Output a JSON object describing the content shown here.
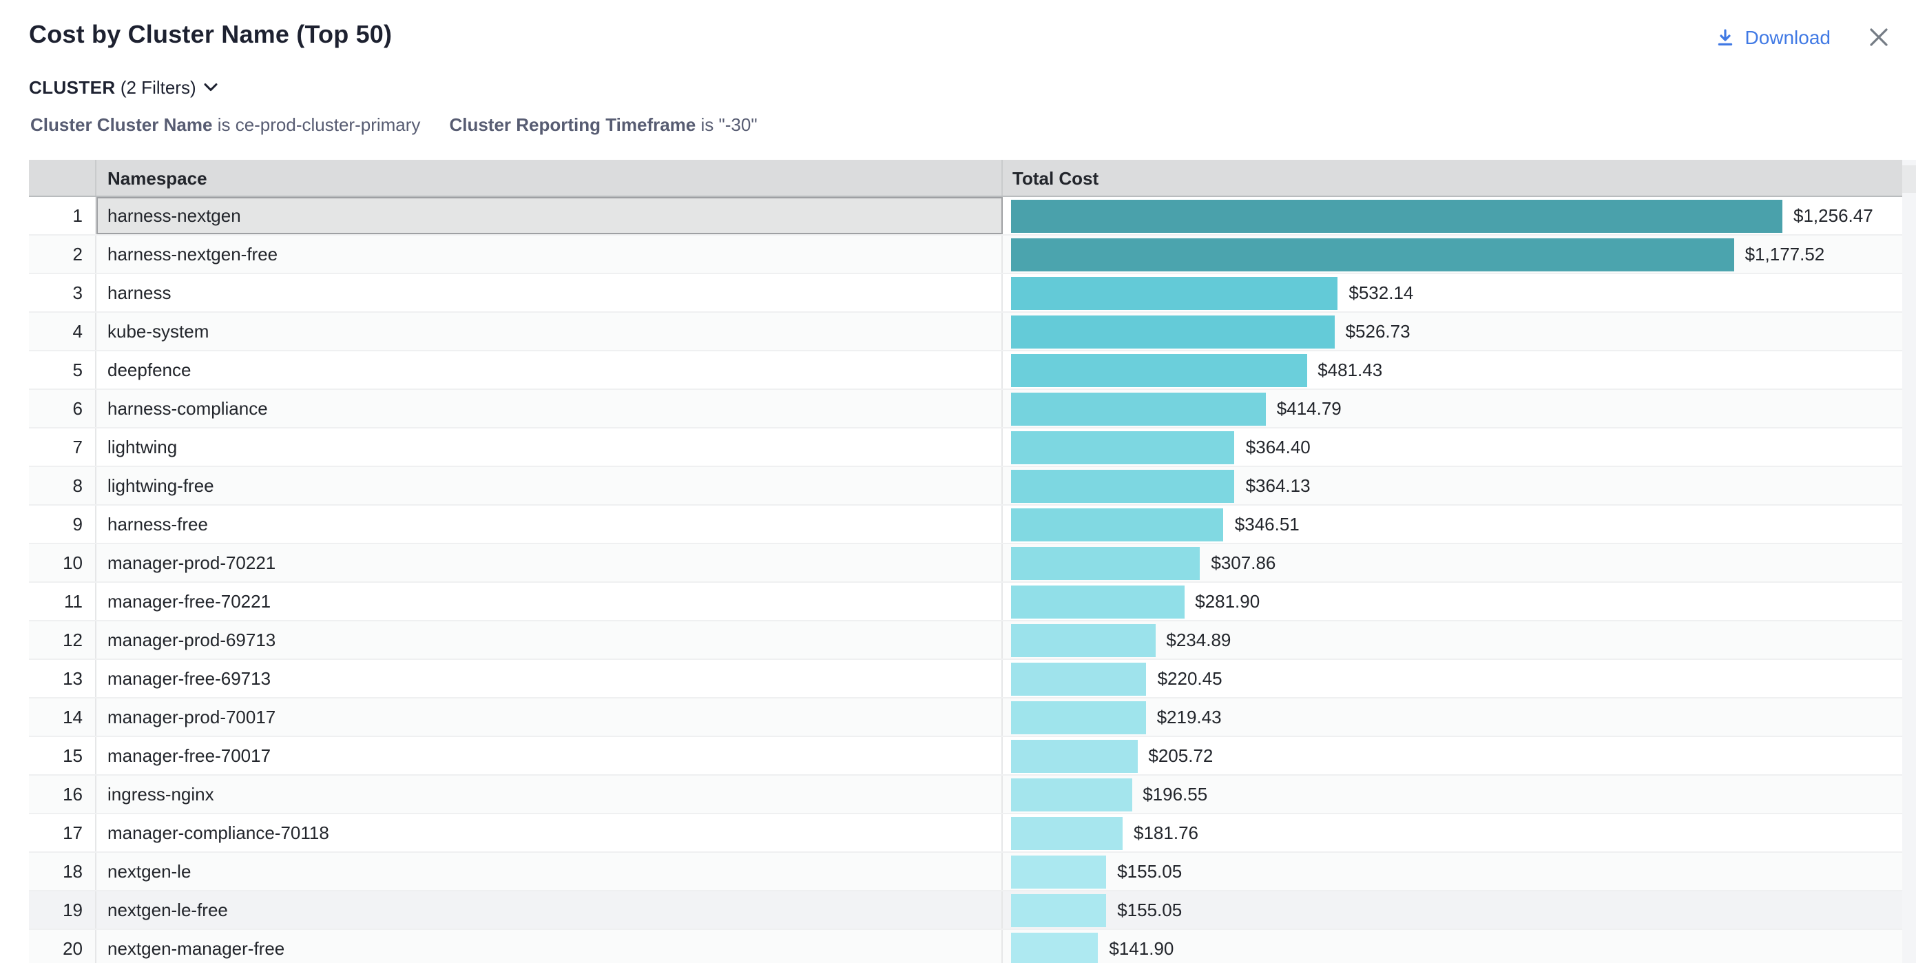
{
  "header": {
    "title": "Cost by Cluster Name (Top 50)",
    "download_label": "Download"
  },
  "filters": {
    "group_label": "CLUSTER",
    "count_label": "(2 Filters)",
    "chips": [
      {
        "field": "Cluster Cluster Name",
        "condition": "is ce-prod-cluster-primary"
      },
      {
        "field": "Cluster Reporting Timeframe",
        "condition": "is \"-30\""
      }
    ]
  },
  "table": {
    "columns": [
      "",
      "Namespace",
      "Total Cost"
    ],
    "max_cost": 1256.47,
    "rows": [
      {
        "rank": 1,
        "namespace": "harness-nextgen",
        "cost": 1256.47,
        "cost_label": "$1,256.47",
        "bar_color": "#4AA1AB",
        "selected": true,
        "hovered": false
      },
      {
        "rank": 2,
        "namespace": "harness-nextgen-free",
        "cost": 1177.52,
        "cost_label": "$1,177.52",
        "bar_color": "#4BA4AE",
        "selected": false,
        "hovered": false
      },
      {
        "rank": 3,
        "namespace": "harness",
        "cost": 532.14,
        "cost_label": "$532.14",
        "bar_color": "#63CAD7",
        "selected": false,
        "hovered": false
      },
      {
        "rank": 4,
        "namespace": "kube-system",
        "cost": 526.73,
        "cost_label": "$526.73",
        "bar_color": "#64CBD8",
        "selected": false,
        "hovered": false
      },
      {
        "rank": 5,
        "namespace": "deepfence",
        "cost": 481.43,
        "cost_label": "$481.43",
        "bar_color": "#6BCFDB",
        "selected": false,
        "hovered": false
      },
      {
        "rank": 6,
        "namespace": "harness-compliance",
        "cost": 414.79,
        "cost_label": "$414.79",
        "bar_color": "#75D3DE",
        "selected": false,
        "hovered": false
      },
      {
        "rank": 7,
        "namespace": "lightwing",
        "cost": 364.4,
        "cost_label": "$364.40",
        "bar_color": "#7DD7E1",
        "selected": false,
        "hovered": false
      },
      {
        "rank": 8,
        "namespace": "lightwing-free",
        "cost": 364.13,
        "cost_label": "$364.13",
        "bar_color": "#7DD7E1",
        "selected": false,
        "hovered": false
      },
      {
        "rank": 9,
        "namespace": "harness-free",
        "cost": 346.51,
        "cost_label": "$346.51",
        "bar_color": "#81D9E2",
        "selected": false,
        "hovered": false
      },
      {
        "rank": 10,
        "namespace": "manager-prod-70221",
        "cost": 307.86,
        "cost_label": "$307.86",
        "bar_color": "#8CDDE6",
        "selected": false,
        "hovered": false
      },
      {
        "rank": 11,
        "namespace": "manager-free-70221",
        "cost": 281.9,
        "cost_label": "$281.90",
        "bar_color": "#91DFE8",
        "selected": false,
        "hovered": false
      },
      {
        "rank": 12,
        "namespace": "manager-prod-69713",
        "cost": 234.89,
        "cost_label": "$234.89",
        "bar_color": "#9BE2EB",
        "selected": false,
        "hovered": false
      },
      {
        "rank": 13,
        "namespace": "manager-free-69713",
        "cost": 220.45,
        "cost_label": "$220.45",
        "bar_color": "#9FE3EC",
        "selected": false,
        "hovered": false
      },
      {
        "rank": 14,
        "namespace": "manager-prod-70017",
        "cost": 219.43,
        "cost_label": "$219.43",
        "bar_color": "#9FE4EC",
        "selected": false,
        "hovered": false
      },
      {
        "rank": 15,
        "namespace": "manager-free-70017",
        "cost": 205.72,
        "cost_label": "$205.72",
        "bar_color": "#A2E4ED",
        "selected": false,
        "hovered": false
      },
      {
        "rank": 16,
        "namespace": "ingress-nginx",
        "cost": 196.55,
        "cost_label": "$196.55",
        "bar_color": "#A4E5ED",
        "selected": false,
        "hovered": false
      },
      {
        "rank": 17,
        "namespace": "manager-compliance-70118",
        "cost": 181.76,
        "cost_label": "$181.76",
        "bar_color": "#A7E6EE",
        "selected": false,
        "hovered": false
      },
      {
        "rank": 18,
        "namespace": "nextgen-le",
        "cost": 155.05,
        "cost_label": "$155.05",
        "bar_color": "#ABE8F0",
        "selected": false,
        "hovered": false
      },
      {
        "rank": 19,
        "namespace": "nextgen-le-free",
        "cost": 155.05,
        "cost_label": "$155.05",
        "bar_color": "#ABE8F0",
        "selected": false,
        "hovered": true
      },
      {
        "rank": 20,
        "namespace": "nextgen-manager-free",
        "cost": 141.9,
        "cost_label": "$141.90",
        "bar_color": "#AEE9F1",
        "selected": false,
        "hovered": false
      }
    ]
  },
  "chart_data": {
    "type": "bar",
    "orientation": "horizontal",
    "title": "Cost by Cluster Name (Top 50)",
    "xlabel": "Total Cost",
    "ylabel": "Namespace",
    "xlim": [
      0,
      1256.47
    ],
    "grid": false,
    "categories": [
      "harness-nextgen",
      "harness-nextgen-free",
      "harness",
      "kube-system",
      "deepfence",
      "harness-compliance",
      "lightwing",
      "lightwing-free",
      "harness-free",
      "manager-prod-70221",
      "manager-free-70221",
      "manager-prod-69713",
      "manager-free-69713",
      "manager-prod-70017",
      "manager-free-70017",
      "ingress-nginx",
      "manager-compliance-70118",
      "nextgen-le",
      "nextgen-le-free",
      "nextgen-manager-free"
    ],
    "values": [
      1256.47,
      1177.52,
      532.14,
      526.73,
      481.43,
      414.79,
      364.4,
      364.13,
      346.51,
      307.86,
      281.9,
      234.89,
      220.45,
      219.43,
      205.72,
      196.55,
      181.76,
      155.05,
      155.05,
      141.9
    ],
    "data_labels": [
      "$1,256.47",
      "$1,177.52",
      "$532.14",
      "$526.73",
      "$481.43",
      "$414.79",
      "$364.40",
      "$364.13",
      "$346.51",
      "$307.86",
      "$281.90",
      "$234.89",
      "$220.45",
      "$219.43",
      "$205.72",
      "$196.55",
      "$181.76",
      "$155.05",
      "$155.05",
      "$141.90"
    ],
    "color_scale": {
      "high": "#4AA1AB",
      "low": "#AEE9F1"
    }
  }
}
